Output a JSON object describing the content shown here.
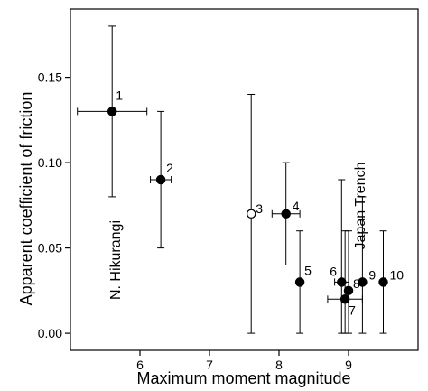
{
  "chart_data": {
    "type": "scatter",
    "title": "",
    "xlabel": "Maximum moment magnitude",
    "ylabel": "Apparent coefficient of friction",
    "xlim": [
      5.0,
      10.0
    ],
    "ylim": [
      -0.01,
      0.19
    ],
    "xticks": [
      6,
      7,
      8,
      9
    ],
    "yticks": [
      0.0,
      0.05,
      0.1,
      0.15
    ],
    "ytick_labels": [
      "0.00",
      "0.05",
      "0.10",
      "0.15"
    ],
    "grid": false,
    "points": [
      {
        "label": "1",
        "x": 5.6,
        "y": 0.13,
        "xerr": [
          5.1,
          6.1
        ],
        "yerr": [
          0.08,
          0.18
        ],
        "filled": true
      },
      {
        "label": "2",
        "x": 6.3,
        "y": 0.09,
        "xerr": [
          6.15,
          6.45
        ],
        "yerr": [
          0.05,
          0.13
        ],
        "filled": true
      },
      {
        "label": "3",
        "x": 7.6,
        "y": 0.07,
        "xerr": null,
        "yerr": [
          0.0,
          0.14
        ],
        "filled": false
      },
      {
        "label": "4",
        "x": 8.1,
        "y": 0.07,
        "xerr": [
          7.9,
          8.3
        ],
        "yerr": [
          0.04,
          0.1
        ],
        "filled": true
      },
      {
        "label": "5",
        "x": 8.3,
        "y": 0.03,
        "xerr": null,
        "yerr": [
          0.0,
          0.06
        ],
        "filled": true
      },
      {
        "label": "6",
        "x": 8.9,
        "y": 0.03,
        "xerr": [
          8.8,
          9.0
        ],
        "yerr": [
          0.0,
          0.09
        ],
        "filled": true
      },
      {
        "label": "7",
        "x": 8.95,
        "y": 0.02,
        "xerr": [
          8.7,
          9.2
        ],
        "yerr": [
          0.0,
          0.06
        ],
        "filled": true
      },
      {
        "label": "8",
        "x": 9.0,
        "y": 0.025,
        "xerr": null,
        "yerr": [
          0.0,
          0.06
        ],
        "filled": true
      },
      {
        "label": "9",
        "x": 9.2,
        "y": 0.03,
        "xerr": null,
        "yerr": [
          0.0,
          0.08
        ],
        "filled": true
      },
      {
        "label": "10",
        "x": 9.5,
        "y": 0.03,
        "xerr": null,
        "yerr": [
          0.0,
          0.06
        ],
        "filled": true
      }
    ],
    "annotations": [
      {
        "text": "N. Hikurangi"
      },
      {
        "text": "Japan Trench"
      }
    ]
  }
}
